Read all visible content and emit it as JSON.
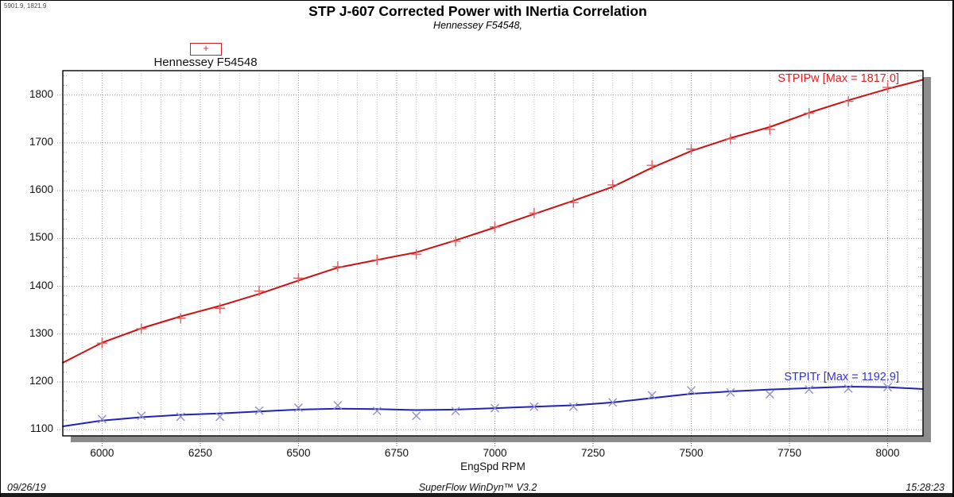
{
  "cursor_readout": "5901.9, 1821.9",
  "title": "STP J-607 Corrected Power with INertia Correlation",
  "subtitle": "Hennessey F54548,",
  "legend": {
    "marker": "+",
    "label": "Hennessey F54548"
  },
  "footer": {
    "date": "09/26/19",
    "app": "SuperFlow WinDyn™ V3.2",
    "time": "15:28:23"
  },
  "chart_data": {
    "type": "line",
    "title": "STP J-607 Corrected Power with INertia Correlation",
    "subtitle": "Hennessey F54548,",
    "xlabel": "EngSpd RPM",
    "ylabel": "",
    "xlim": [
      5900,
      8090
    ],
    "ylim": [
      1087,
      1851
    ],
    "x_ticks": [
      6000,
      6250,
      6500,
      6750,
      7000,
      7250,
      7500,
      7750,
      8000
    ],
    "y_ticks": [
      1100,
      1200,
      1300,
      1400,
      1500,
      1600,
      1700,
      1800
    ],
    "x_minor_step": 50,
    "y_minor_step": 20,
    "grid": "dotted",
    "legend_position": "top-left",
    "series": [
      {
        "name": "STPIPw",
        "label": "STPIPw [Max = 1817.0]",
        "max": 1817.0,
        "color": "#cc1111",
        "marker": "+",
        "marker_color": "#e06060",
        "line": [
          [
            5900,
            1240
          ],
          [
            6000,
            1282
          ],
          [
            6100,
            1312
          ],
          [
            6200,
            1337
          ],
          [
            6300,
            1359
          ],
          [
            6400,
            1384
          ],
          [
            6500,
            1412
          ],
          [
            6600,
            1439
          ],
          [
            6700,
            1455
          ],
          [
            6800,
            1471
          ],
          [
            6900,
            1496
          ],
          [
            7000,
            1523
          ],
          [
            7100,
            1551
          ],
          [
            7200,
            1579
          ],
          [
            7300,
            1608
          ],
          [
            7400,
            1648
          ],
          [
            7500,
            1683
          ],
          [
            7600,
            1710
          ],
          [
            7700,
            1733
          ],
          [
            7800,
            1763
          ],
          [
            7900,
            1789
          ],
          [
            8000,
            1813
          ],
          [
            8090,
            1832
          ]
        ],
        "points": [
          [
            6000,
            1281
          ],
          [
            6100,
            1311
          ],
          [
            6200,
            1333
          ],
          [
            6300,
            1354
          ],
          [
            6400,
            1390
          ],
          [
            6500,
            1417
          ],
          [
            6600,
            1441
          ],
          [
            6700,
            1455
          ],
          [
            6800,
            1467
          ],
          [
            6900,
            1494
          ],
          [
            7000,
            1524
          ],
          [
            7100,
            1553
          ],
          [
            7200,
            1575
          ],
          [
            7300,
            1612
          ],
          [
            7400,
            1653
          ],
          [
            7500,
            1687
          ],
          [
            7600,
            1708
          ],
          [
            7700,
            1728
          ],
          [
            7800,
            1762
          ],
          [
            7900,
            1787
          ],
          [
            8000,
            1816
          ]
        ]
      },
      {
        "name": "STPITr",
        "label": "STPITr [Max = 1192.9]",
        "max": 1192.9,
        "color": "#2222b8",
        "marker": "x",
        "marker_color": "#8f8fc9",
        "line": [
          [
            5900,
            1107
          ],
          [
            6000,
            1119
          ],
          [
            6100,
            1126
          ],
          [
            6200,
            1131
          ],
          [
            6300,
            1134
          ],
          [
            6400,
            1138
          ],
          [
            6500,
            1142
          ],
          [
            6600,
            1144
          ],
          [
            6700,
            1143
          ],
          [
            6800,
            1141
          ],
          [
            6900,
            1142
          ],
          [
            7000,
            1145
          ],
          [
            7100,
            1148
          ],
          [
            7200,
            1151
          ],
          [
            7300,
            1157
          ],
          [
            7400,
            1166
          ],
          [
            7500,
            1175
          ],
          [
            7600,
            1180
          ],
          [
            7700,
            1184
          ],
          [
            7800,
            1187
          ],
          [
            7900,
            1190
          ],
          [
            8000,
            1189
          ],
          [
            8090,
            1185
          ]
        ],
        "points": [
          [
            6000,
            1122
          ],
          [
            6100,
            1129
          ],
          [
            6200,
            1127
          ],
          [
            6300,
            1127
          ],
          [
            6400,
            1140
          ],
          [
            6500,
            1146
          ],
          [
            6600,
            1151
          ],
          [
            6700,
            1139
          ],
          [
            6800,
            1129
          ],
          [
            6900,
            1139
          ],
          [
            7000,
            1145
          ],
          [
            7100,
            1148
          ],
          [
            7200,
            1148
          ],
          [
            7300,
            1157
          ],
          [
            7400,
            1172
          ],
          [
            7500,
            1182
          ],
          [
            7600,
            1178
          ],
          [
            7700,
            1174
          ],
          [
            7800,
            1184
          ],
          [
            7900,
            1186
          ],
          [
            8000,
            1189
          ]
        ]
      }
    ]
  }
}
